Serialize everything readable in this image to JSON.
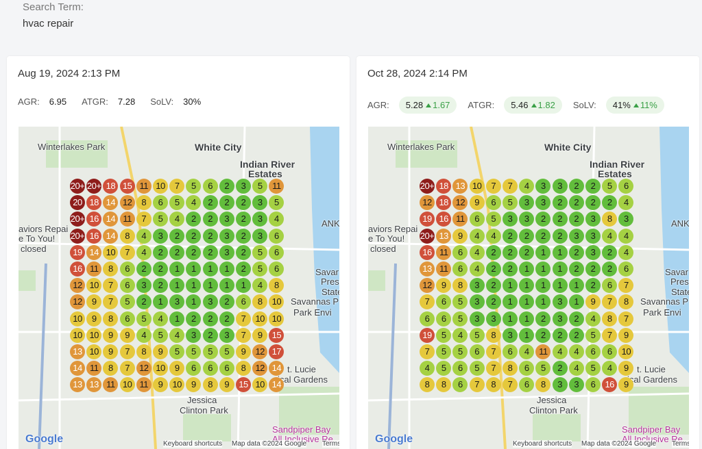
{
  "search": {
    "label": "Search Term:",
    "term": "hvac repair"
  },
  "panels": [
    {
      "date": "Aug 19, 2024 2:13 PM",
      "metrics": [
        {
          "label": "AGR:",
          "value": "6.95"
        },
        {
          "label": "ATGR:",
          "value": "7.28"
        },
        {
          "label": "SoLV:",
          "value": "30%"
        }
      ],
      "grid": [
        [
          "20+",
          "20+",
          "18",
          "15",
          "11",
          "10",
          "7",
          "5",
          "6",
          "2",
          "3",
          "5",
          "11"
        ],
        [
          "20",
          "18",
          "14",
          "12",
          "8",
          "6",
          "5",
          "4",
          "2",
          "2",
          "2",
          "3",
          "5"
        ],
        [
          "20+",
          "16",
          "14",
          "11",
          "7",
          "5",
          "4",
          "2",
          "2",
          "3",
          "2",
          "3",
          "4"
        ],
        [
          "20+",
          "16",
          "14",
          "8",
          "4",
          "3",
          "2",
          "2",
          "2",
          "3",
          "2",
          "3",
          "6"
        ],
        [
          "19",
          "14",
          "10",
          "7",
          "4",
          "2",
          "2",
          "2",
          "2",
          "3",
          "2",
          "5",
          "6"
        ],
        [
          "16",
          "11",
          "8",
          "6",
          "2",
          "2",
          "1",
          "1",
          "1",
          "1",
          "2",
          "5",
          "6"
        ],
        [
          "12",
          "10",
          "7",
          "6",
          "3",
          "2",
          "1",
          "1",
          "1",
          "1",
          "1",
          "4",
          "8"
        ],
        [
          "12",
          "9",
          "7",
          "5",
          "2",
          "1",
          "3",
          "1",
          "3",
          "2",
          "6",
          "8",
          "10"
        ],
        [
          "10",
          "9",
          "8",
          "6",
          "5",
          "4",
          "1",
          "2",
          "2",
          "2",
          "7",
          "10",
          "10"
        ],
        [
          "10",
          "10",
          "9",
          "9",
          "4",
          "5",
          "4",
          "3",
          "2",
          "3",
          "7",
          "9",
          "15"
        ],
        [
          "13",
          "10",
          "9",
          "7",
          "8",
          "9",
          "5",
          "5",
          "5",
          "5",
          "9",
          "12",
          "17"
        ],
        [
          "14",
          "11",
          "8",
          "7",
          "12",
          "10",
          "9",
          "6",
          "6",
          "6",
          "8",
          "12",
          "14"
        ],
        [
          "13",
          "13",
          "11",
          "10",
          "11",
          "9",
          "10",
          "9",
          "8",
          "9",
          "15",
          "10",
          "14"
        ]
      ],
      "map_labels": [
        "Winterlakes Park",
        "White City",
        "Indian River",
        "Estates",
        "aviors Repai",
        "e To You!",
        "closed",
        "ANKO",
        "Savar",
        "Prese",
        "State",
        "Savannas P",
        "Park Envi",
        "t. Lucie",
        "ical Gardens",
        "Jessica",
        "Clinton Park",
        "Sandpiper Bay",
        "All Inclusive Re",
        "Google",
        "Keyboard shortcuts",
        "Map data ©2024 Google",
        "Terms"
      ]
    },
    {
      "date": "Oct 28, 2024 2:14 PM",
      "metrics": [
        {
          "label": "AGR:",
          "value": "5.28",
          "change": "1.67"
        },
        {
          "label": "ATGR:",
          "value": "5.46",
          "change": "1.82"
        },
        {
          "label": "SoLV:",
          "value": "41%",
          "change": "11%"
        }
      ],
      "grid": [
        [
          "20+",
          "18",
          "13",
          "10",
          "7",
          "7",
          "4",
          "3",
          "3",
          "2",
          "2",
          "5",
          "6"
        ],
        [
          "12",
          "18",
          "12",
          "9",
          "6",
          "5",
          "3",
          "3",
          "2",
          "2",
          "2",
          "2",
          "4"
        ],
        [
          "19",
          "16",
          "11",
          "6",
          "5",
          "3",
          "3",
          "2",
          "2",
          "2",
          "3",
          "8",
          "3"
        ],
        [
          "20+",
          "13",
          "9",
          "4",
          "4",
          "2",
          "2",
          "2",
          "2",
          "3",
          "3",
          "4",
          "4"
        ],
        [
          "16",
          "11",
          "6",
          "4",
          "2",
          "2",
          "2",
          "1",
          "1",
          "2",
          "3",
          "2",
          "4"
        ],
        [
          "13",
          "11",
          "6",
          "4",
          "2",
          "2",
          "1",
          "1",
          "1",
          "2",
          "2",
          "2",
          "6"
        ],
        [
          "12",
          "9",
          "8",
          "3",
          "2",
          "1",
          "1",
          "1",
          "1",
          "1",
          "2",
          "6",
          "7"
        ],
        [
          "7",
          "6",
          "5",
          "3",
          "2",
          "1",
          "1",
          "1",
          "3",
          "1",
          "9",
          "7",
          "8"
        ],
        [
          "6",
          "6",
          "5",
          "3",
          "3",
          "1",
          "1",
          "2",
          "3",
          "2",
          "4",
          "8",
          "7"
        ],
        [
          "19",
          "5",
          "4",
          "5",
          "8",
          "3",
          "1",
          "2",
          "2",
          "2",
          "5",
          "7",
          "9"
        ],
        [
          "7",
          "5",
          "5",
          "6",
          "7",
          "6",
          "4",
          "11",
          "4",
          "4",
          "6",
          "6",
          "10"
        ],
        [
          "4",
          "5",
          "6",
          "5",
          "7",
          "8",
          "6",
          "5",
          "2",
          "4",
          "5",
          "4",
          "9"
        ],
        [
          "8",
          "8",
          "6",
          "7",
          "8",
          "7",
          "6",
          "8",
          "3",
          "3",
          "6",
          "16",
          "9"
        ]
      ],
      "map_labels": [
        "Winterlakes Park",
        "White City",
        "Indian River",
        "Estates",
        "aviors Repai",
        "e To You!",
        "closed",
        "ANKO",
        "Savar",
        "Prese",
        "State",
        "Savannas P",
        "Park Envi",
        "t. Lucie",
        "ical Gardens",
        "Jessica",
        "Clinton Park",
        "Sandpiper Bay",
        "All Inclusive Re",
        "Google",
        "Keyboard shortcuts",
        "Map data ©2024 Google",
        "Terms"
      ]
    }
  ]
}
